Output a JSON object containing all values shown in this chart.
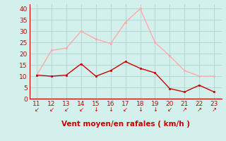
{
  "x": [
    11,
    12,
    13,
    14,
    15,
    16,
    17,
    18,
    19,
    20,
    21,
    22,
    23
  ],
  "wind_avg": [
    10.5,
    10.0,
    10.5,
    15.5,
    10.0,
    12.5,
    16.5,
    13.5,
    11.5,
    4.5,
    3.0,
    6.0,
    3.0
  ],
  "wind_gust": [
    10.5,
    21.5,
    22.5,
    30.0,
    26.5,
    24.5,
    34.0,
    40.0,
    25.0,
    19.0,
    12.5,
    10.0,
    10.0
  ],
  "avg_color": "#cc0000",
  "gust_color": "#ffaaaa",
  "bg_color": "#d4f0ec",
  "grid_color": "#b0d8d4",
  "xlabel": "Vent moyen/en rafales ( km/h )",
  "ylim": [
    0,
    42
  ],
  "yticks": [
    0,
    5,
    10,
    15,
    20,
    25,
    30,
    35,
    40
  ],
  "xticks": [
    11,
    12,
    13,
    14,
    15,
    16,
    17,
    18,
    19,
    20,
    21,
    22,
    23
  ],
  "axis_color": "#cc0000",
  "tick_color": "#cc0000",
  "arrow_symbols": [
    "↙",
    "↙",
    "↙",
    "↙",
    "↓",
    "↓",
    "↙",
    "↓",
    "↓",
    "↙",
    "↗",
    "↗",
    "↗"
  ]
}
